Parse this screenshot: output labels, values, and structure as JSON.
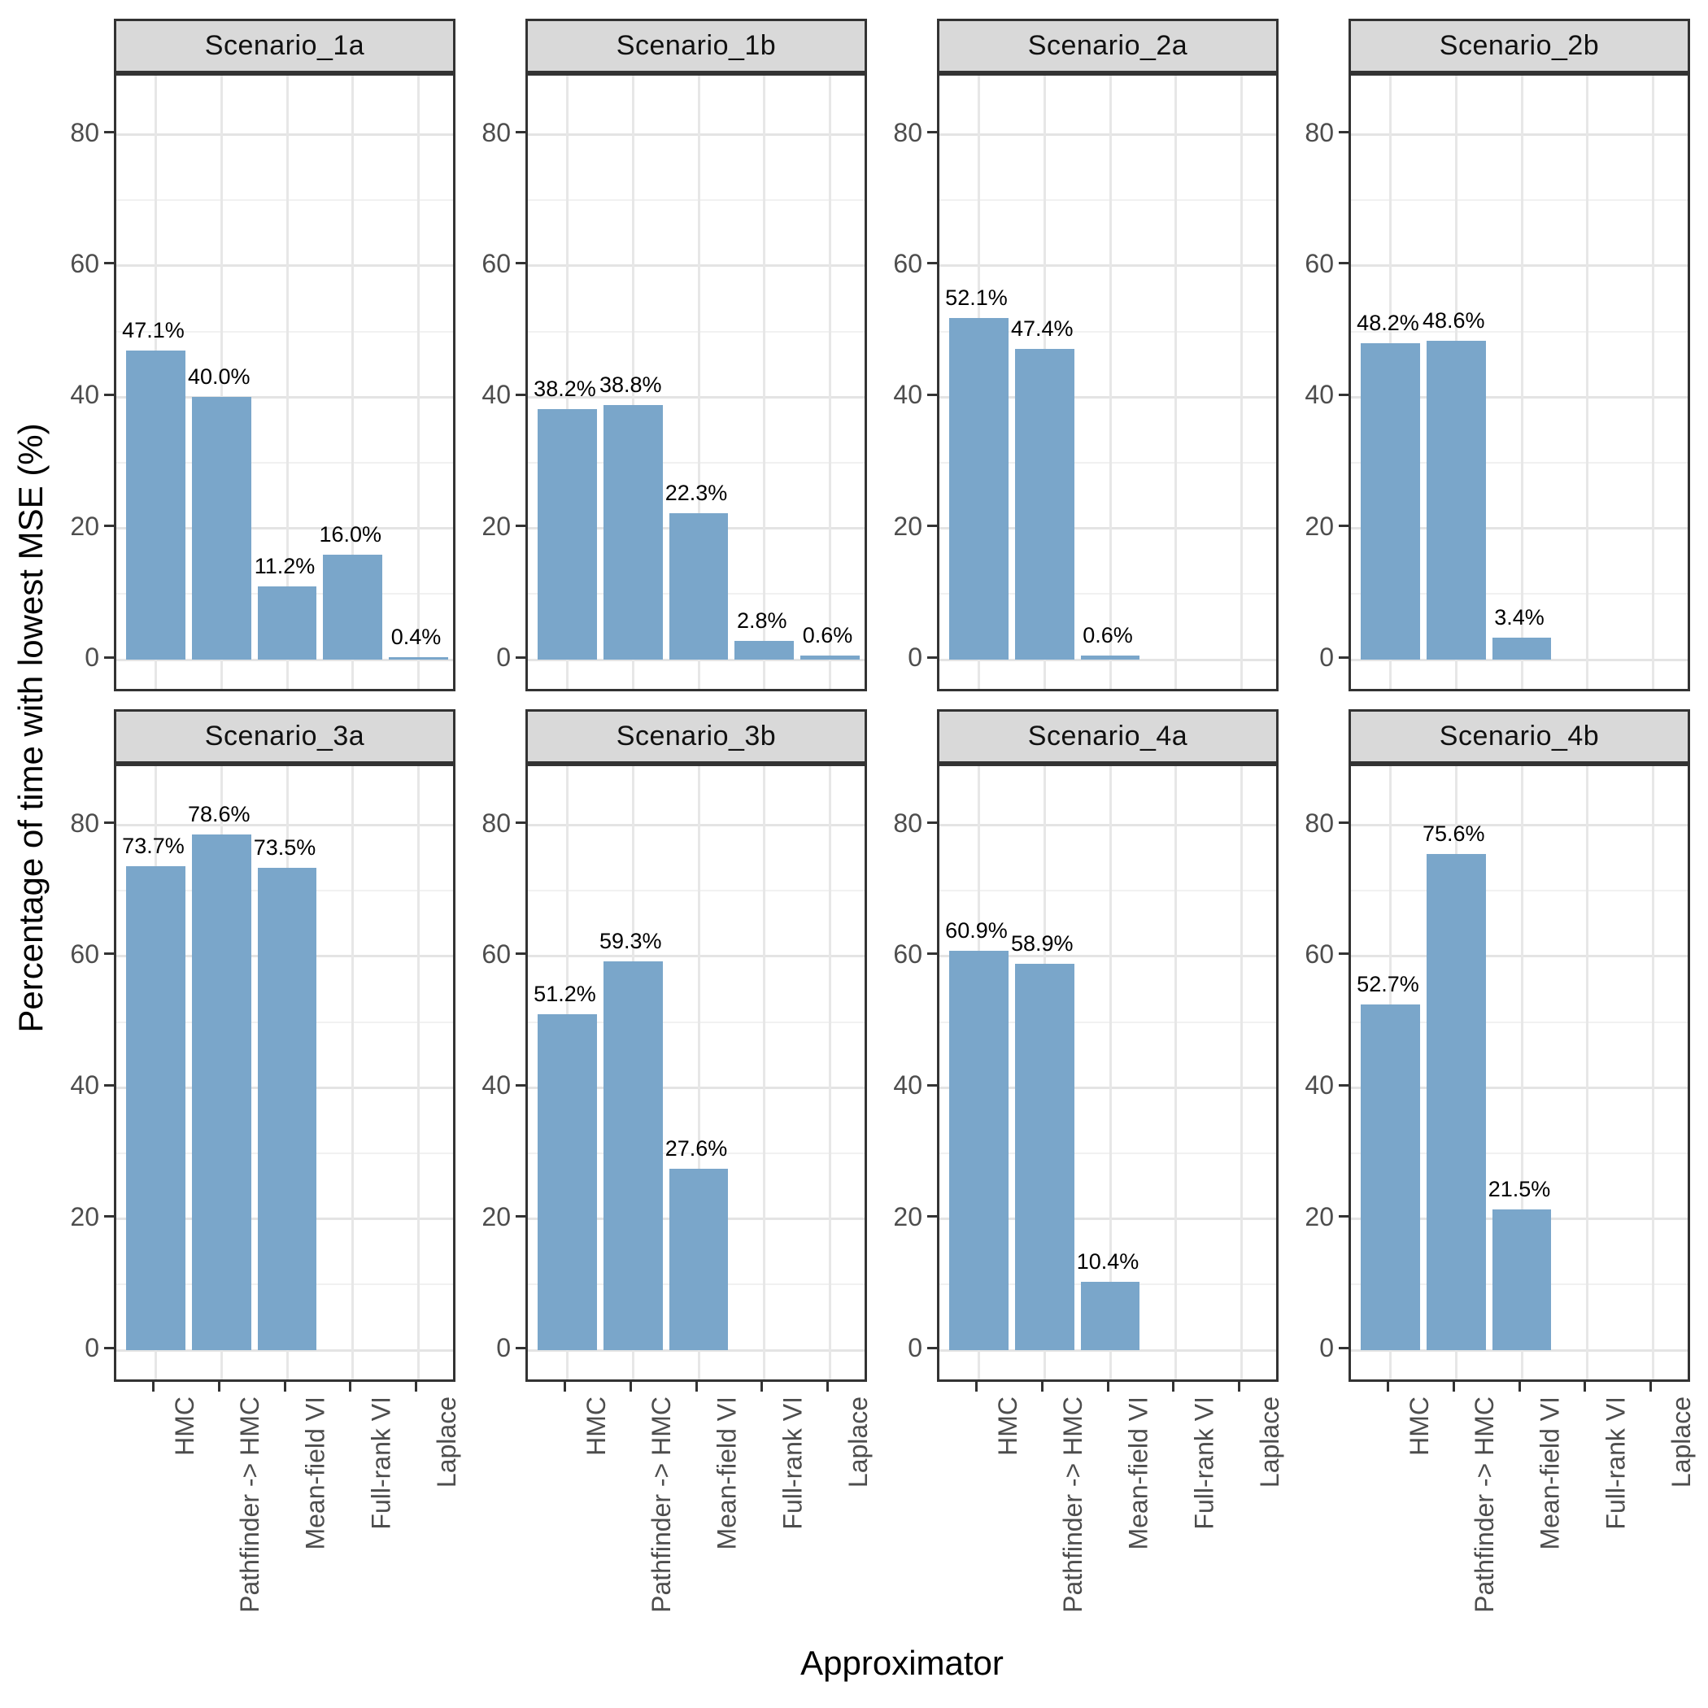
{
  "chart_data": {
    "type": "bar",
    "title": "",
    "xlabel": "Approximator",
    "ylabel": "Percentage of time with lowest MSE (%)",
    "categories": [
      "HMC",
      "Pathfinder -> HMC",
      "Mean-field VI",
      "Full-rank VI",
      "Laplace"
    ],
    "y_ticks": [
      0,
      20,
      40,
      60,
      80
    ],
    "y_minor_ticks": [
      10,
      30,
      50,
      70
    ],
    "ylim": [
      -5.2,
      89
    ],
    "grid": "on",
    "legend": "none",
    "bar_width_fraction": 0.9,
    "facets": [
      {
        "label": "Scenario_1a",
        "values": [
          47.1,
          40.0,
          11.2,
          16.0,
          0.4
        ],
        "value_labels": [
          "47.1%",
          "40.0%",
          "11.2%",
          "16.0%",
          "0.4%"
        ]
      },
      {
        "label": "Scenario_1b",
        "values": [
          38.2,
          38.8,
          22.3,
          2.8,
          0.6
        ],
        "value_labels": [
          "38.2%",
          "38.8%",
          "22.3%",
          "2.8%",
          "0.6%"
        ]
      },
      {
        "label": "Scenario_2a",
        "values": [
          52.1,
          47.4,
          0.6,
          null,
          null
        ],
        "value_labels": [
          "52.1%",
          "47.4%",
          "0.6%",
          null,
          null
        ]
      },
      {
        "label": "Scenario_2b",
        "values": [
          48.2,
          48.6,
          3.4,
          null,
          null
        ],
        "value_labels": [
          "48.2%",
          "48.6%",
          "3.4%",
          null,
          null
        ]
      },
      {
        "label": "Scenario_3a",
        "values": [
          73.7,
          78.6,
          73.5,
          null,
          null
        ],
        "value_labels": [
          "73.7%",
          "78.6%",
          "73.5%",
          null,
          null
        ]
      },
      {
        "label": "Scenario_3b",
        "values": [
          51.2,
          59.3,
          27.6,
          null,
          null
        ],
        "value_labels": [
          "51.2%",
          "59.3%",
          "27.6%",
          null,
          null
        ]
      },
      {
        "label": "Scenario_4a",
        "values": [
          60.9,
          58.9,
          10.4,
          null,
          null
        ],
        "value_labels": [
          "60.9%",
          "58.9%",
          "10.4%",
          null,
          null
        ]
      },
      {
        "label": "Scenario_4b",
        "values": [
          52.7,
          75.6,
          21.5,
          null,
          null
        ],
        "value_labels": [
          "52.7%",
          "75.6%",
          "21.5%",
          null,
          null
        ]
      }
    ],
    "colors": {
      "bar_fill": "#7AA6CA",
      "strip_background": "#D9D9D9",
      "panel_border": "#333333",
      "grid_major": "#E4E4E4",
      "grid_minor": "#F1F1F1",
      "tick_text": "#4D4D4D",
      "label_text": "#000000"
    }
  }
}
